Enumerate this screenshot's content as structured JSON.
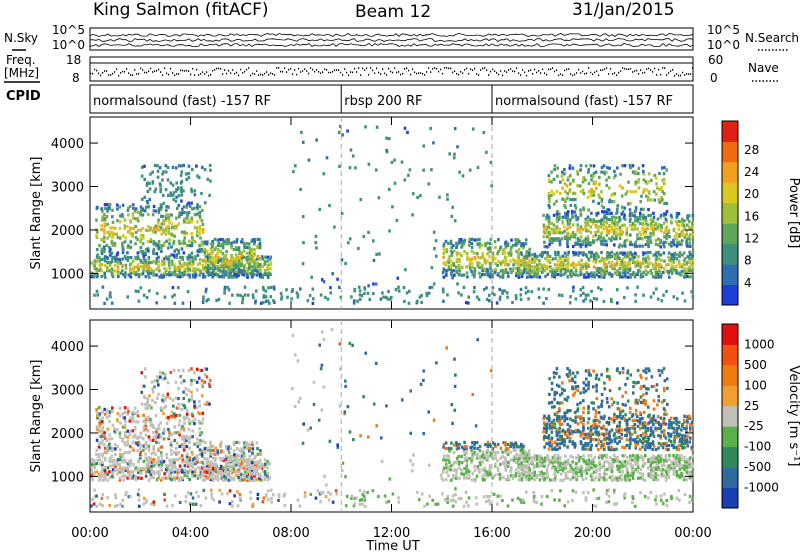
{
  "header": {
    "station": "King Salmon (fitACF)",
    "beam": "Beam 12",
    "date": "31/Jan/2015"
  },
  "noise_panel": {
    "left_label": "N.Sky",
    "right_label": "N.Search",
    "left_ticks": [
      "10^5",
      "10^0"
    ],
    "right_ticks": [
      "10^5",
      "10^0"
    ]
  },
  "freq_panel": {
    "left_label_line1": "Freq.",
    "left_label_line2": "[MHz]",
    "right_label": "Nave",
    "left_ticks": [
      "18",
      "8"
    ],
    "right_ticks": [
      "60",
      "0"
    ]
  },
  "cpid": {
    "label": "CPID",
    "segments": [
      {
        "text": "normalsound (fast) -157 RF",
        "start_hour": 0
      },
      {
        "text": "rbsp 200 RF",
        "start_hour": 10
      },
      {
        "text": "normalsound (fast) -157 RF",
        "start_hour": 16
      }
    ]
  },
  "chart_data": [
    {
      "type": "heatmap",
      "name": "power",
      "ylabel": "Slant Range [km]",
      "xlabel": "Time UT",
      "xlim_hours": [
        0,
        24
      ],
      "ylim": [
        180,
        4600
      ],
      "x_tick_labels": [
        "00:00",
        "04:00",
        "08:00",
        "12:00",
        "16:00",
        "20:00",
        "00:00"
      ],
      "x_tick_hours": [
        0,
        4,
        8,
        12,
        16,
        20,
        24
      ],
      "y_ticks": [
        1000,
        2000,
        3000,
        4000
      ],
      "colorbar": {
        "label": "Power [dB]",
        "ticks": [
          "4",
          "8",
          "12",
          "16",
          "20",
          "24",
          "28"
        ],
        "colors": [
          "#1f3fd9",
          "#2f6fb0",
          "#3f8f7f",
          "#5fa55a",
          "#9fbf3a",
          "#d9c820",
          "#f0a020",
          "#f06a10",
          "#e02010"
        ]
      }
    },
    {
      "type": "heatmap",
      "name": "velocity",
      "ylabel": "Slant Range [km]",
      "xlabel": "Time UT",
      "xlim_hours": [
        0,
        24
      ],
      "ylim": [
        180,
        4600
      ],
      "x_tick_labels": [
        "00:00",
        "04:00",
        "08:00",
        "12:00",
        "16:00",
        "20:00",
        "00:00"
      ],
      "x_tick_hours": [
        0,
        4,
        8,
        12,
        16,
        20,
        24
      ],
      "y_ticks": [
        1000,
        2000,
        3000,
        4000
      ],
      "colorbar": {
        "label": "Velocity [m s⁻¹]",
        "ticks": [
          "1000",
          "500",
          "100",
          "25",
          "-25",
          "-100",
          "-500",
          "-1000"
        ],
        "colors": [
          "#1a3fb5",
          "#2f6a9f",
          "#2f8a5a",
          "#5ab04a",
          "#c0c0b8",
          "#f0a030",
          "#f07a10",
          "#f05010",
          "#e01010"
        ]
      }
    }
  ],
  "time_axis": {
    "label": "Time UT"
  }
}
